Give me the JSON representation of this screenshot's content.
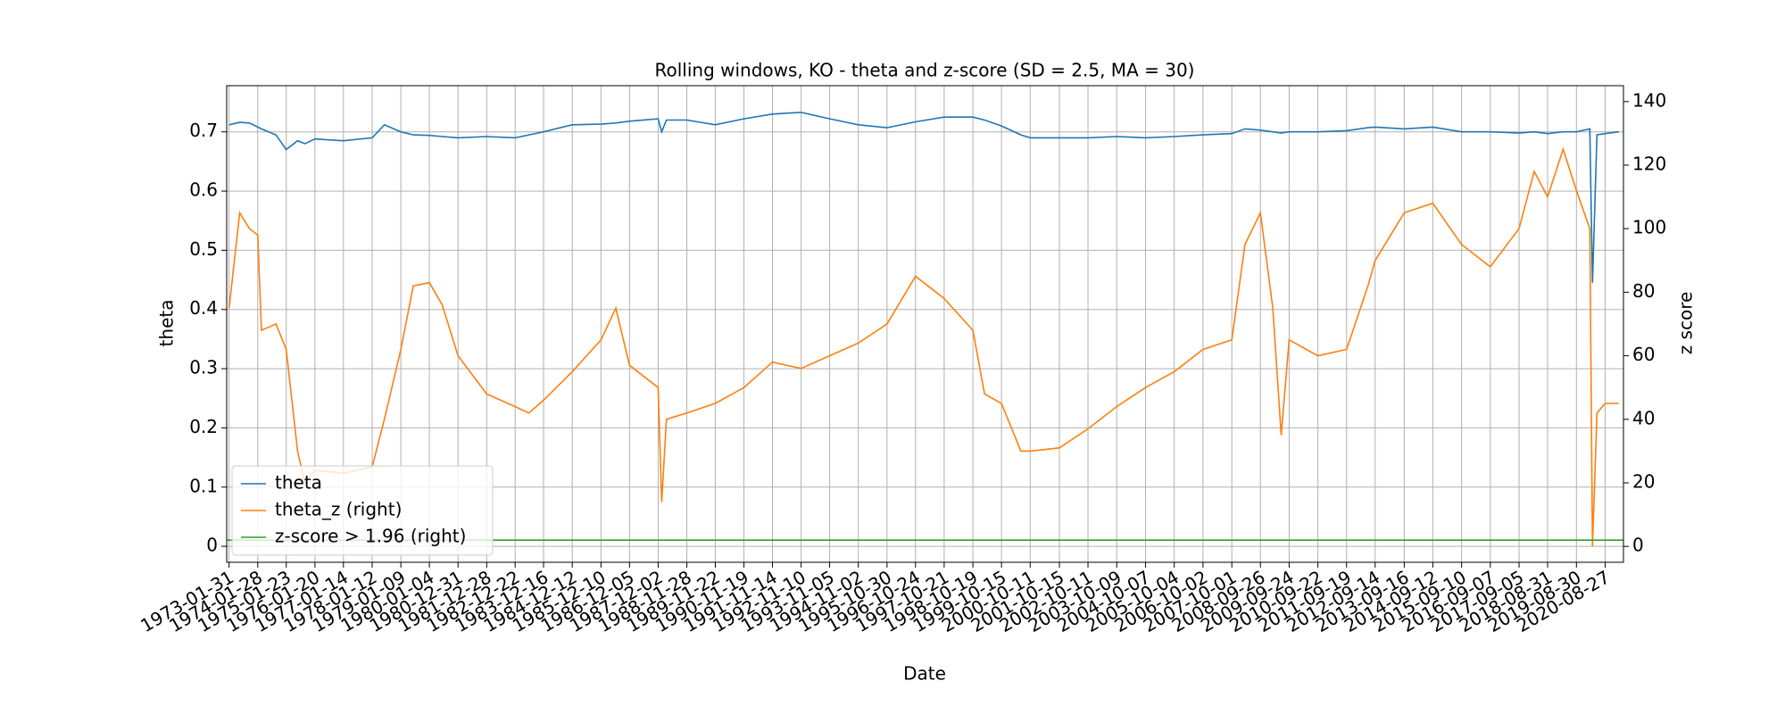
{
  "chart_data": {
    "type": "line",
    "title": "Rolling windows, KO - theta and z-score (SD = 2.5, MA = 30)",
    "x_label": "Date",
    "y_label": "theta",
    "y2_label": "z score",
    "x": [
      "1973-01-31",
      "1973-06-15",
      "1973-10-15",
      "1974-01-28",
      "1974-03-15",
      "1974-09-15",
      "1975-01-23",
      "1975-06-15",
      "1975-09-15",
      "1976-01-20",
      "1977-01-14",
      "1978-01-12",
      "1978-06-15",
      "1979-01-09",
      "1979-06-15",
      "1980-01-04",
      "1980-06-15",
      "1980-12-31",
      "1981-12-28",
      "1982-12-22",
      "1983-06-15",
      "1983-12-16",
      "1984-12-12",
      "1985-12-10",
      "1986-06-15",
      "1986-12-05",
      "1987-12-02",
      "1988-01-15",
      "1988-03-15",
      "1988-11-28",
      "1989-11-22",
      "1990-11-19",
      "1991-11-14",
      "1992-11-10",
      "1993-11-05",
      "1994-11-02",
      "1995-10-30",
      "1996-10-24",
      "1997-10-21",
      "1998-10-19",
      "1999-03-15",
      "1999-10-15",
      "2000-06-15",
      "2000-10-11",
      "2001-10-15",
      "2002-10-11",
      "2003-10-09",
      "2004-10-07",
      "2005-10-04",
      "2006-10-02",
      "2007-10-01",
      "2008-03-15",
      "2008-09-26",
      "2009-03-01",
      "2009-06-15",
      "2009-09-24",
      "2010-09-22",
      "2011-09-19",
      "2012-06-15",
      "2012-09-14",
      "2013-09-16",
      "2014-09-12",
      "2015-09-10",
      "2016-09-07",
      "2017-09-05",
      "2018-03-15",
      "2018-08-31",
      "2019-03-15",
      "2019-08-30",
      "2020-02-15",
      "2020-03-20",
      "2020-05-15",
      "2020-08-27",
      "2021-02-15"
    ],
    "series": [
      {
        "name": "theta",
        "color": "#1f77b4",
        "axis": "y",
        "values": [
          0.712,
          0.716,
          0.715,
          0.708,
          0.705,
          0.695,
          0.67,
          0.685,
          0.68,
          0.688,
          0.685,
          0.69,
          0.712,
          0.7,
          0.695,
          0.694,
          0.692,
          0.69,
          0.692,
          0.69,
          0.695,
          0.7,
          0.712,
          0.713,
          0.715,
          0.718,
          0.722,
          0.7,
          0.72,
          0.72,
          0.712,
          0.722,
          0.73,
          0.733,
          0.722,
          0.712,
          0.707,
          0.717,
          0.725,
          0.725,
          0.72,
          0.71,
          0.695,
          0.69,
          0.69,
          0.69,
          0.692,
          0.69,
          0.692,
          0.695,
          0.697,
          0.705,
          0.703,
          0.7,
          0.698,
          0.7,
          0.7,
          0.702,
          0.707,
          0.708,
          0.705,
          0.708,
          0.7,
          0.7,
          0.698,
          0.7,
          0.697,
          0.7,
          0.7,
          0.705,
          0.445,
          0.695,
          0.697,
          0.7
        ]
      },
      {
        "name": "theta_z (right)",
        "color": "#ff7f0e",
        "axis": "y2",
        "values": [
          75,
          105,
          100,
          98,
          68,
          70,
          62,
          30,
          20,
          24,
          23,
          25,
          40,
          62,
          82,
          83,
          76,
          60,
          48,
          44,
          42,
          46,
          55,
          65,
          75,
          57,
          50,
          14,
          40,
          42,
          45,
          50,
          58,
          56,
          60,
          64,
          70,
          85,
          78,
          68,
          48,
          45,
          30,
          30,
          31,
          37,
          44,
          50,
          55,
          62,
          65,
          95,
          105,
          75,
          35,
          65,
          60,
          62,
          82,
          90,
          105,
          108,
          95,
          88,
          100,
          118,
          110,
          125,
          112,
          100,
          0,
          42,
          45,
          45
        ]
      },
      {
        "name": "z-score > 1.96 (right)",
        "color": "#2ca02c",
        "axis": "y2",
        "value": 1.96
      }
    ],
    "xlim": [
      "1973-01-01",
      "2021-04-15"
    ],
    "xticks": [
      "1973-01-31",
      "1974-01-28",
      "1975-01-23",
      "1976-01-20",
      "1977-01-14",
      "1978-01-12",
      "1979-01-09",
      "1980-01-04",
      "1980-12-31",
      "1981-12-28",
      "1982-12-22",
      "1983-12-16",
      "1984-12-12",
      "1985-12-10",
      "1986-12-05",
      "1987-12-02",
      "1988-11-28",
      "1989-11-22",
      "1990-11-19",
      "1991-11-14",
      "1992-11-10",
      "1993-11-05",
      "1994-11-02",
      "1995-10-30",
      "1996-10-24",
      "1997-10-21",
      "1998-10-19",
      "1999-10-15",
      "2000-10-11",
      "2001-10-15",
      "2002-10-11",
      "2003-10-09",
      "2004-10-07",
      "2005-10-04",
      "2006-10-02",
      "2007-10-01",
      "2008-09-26",
      "2009-09-24",
      "2010-09-22",
      "2011-09-19",
      "2012-09-14",
      "2013-09-16",
      "2014-09-12",
      "2015-09-10",
      "2016-09-07",
      "2017-09-05",
      "2018-08-31",
      "2019-08-30",
      "2020-08-27"
    ],
    "ylim": [
      -0.027,
      0.778
    ],
    "yticks": [
      0.0,
      0.1,
      0.2,
      0.3,
      0.4,
      0.5,
      0.6,
      0.7
    ],
    "y2lim": [
      -5,
      145
    ],
    "y2ticks": [
      0,
      20,
      40,
      60,
      80,
      100,
      120,
      140
    ],
    "grid": true,
    "legend": "lower left"
  }
}
